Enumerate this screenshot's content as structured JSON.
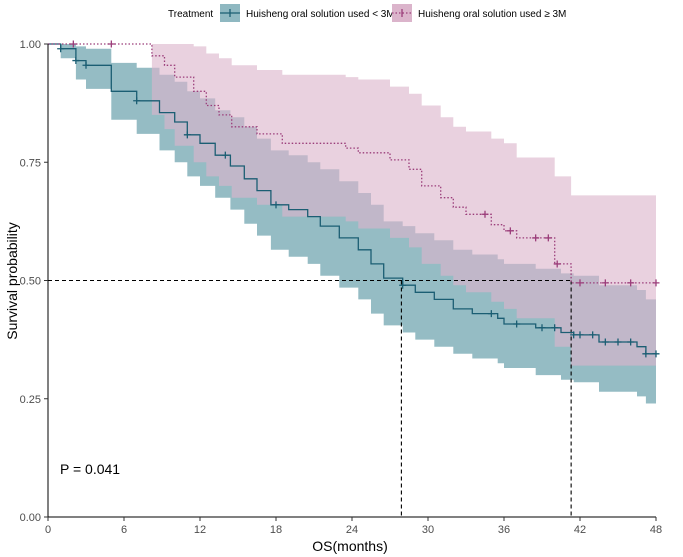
{
  "chart_data": {
    "type": "line",
    "subtype": "kaplan-meier survival curve",
    "title": "",
    "xlabel": "OS(months)",
    "ylabel": "Survival probability",
    "xlim": [
      0,
      48
    ],
    "ylim": [
      0,
      1
    ],
    "x_ticks": [
      0,
      6,
      12,
      18,
      24,
      30,
      36,
      42,
      48
    ],
    "y_ticks": [
      0,
      0.25,
      0.5,
      0.75,
      1
    ],
    "y_tick_labels": [
      "0.00",
      "0.25",
      "0.50",
      "0.75",
      "1.00"
    ],
    "legend": {
      "title": "Treatment",
      "position": "top",
      "entries": [
        "Huisheng oral solution used < 3M",
        "Huisheng oral solution used ≥ 3M"
      ]
    },
    "annotation": "P = 0.041",
    "reference_lines": {
      "horizontal_at": 0.5,
      "vertical_at": [
        27.9,
        41.3
      ]
    },
    "series": [
      {
        "name": "Huisheng oral solution used < 3M",
        "color": "#1b5e73",
        "ci_color": "#8fb8c1",
        "line_style": "solid",
        "steps": [
          [
            0,
            1.0
          ],
          [
            1.0,
            0.99
          ],
          [
            2.2,
            0.965
          ],
          [
            3.0,
            0.955
          ],
          [
            5.0,
            0.9
          ],
          [
            7.0,
            0.88
          ],
          [
            8.8,
            0.855
          ],
          [
            10.0,
            0.835
          ],
          [
            11.0,
            0.808
          ],
          [
            12.0,
            0.79
          ],
          [
            13.2,
            0.765
          ],
          [
            14.4,
            0.742
          ],
          [
            15.5,
            0.715
          ],
          [
            16.5,
            0.69
          ],
          [
            17.6,
            0.66
          ],
          [
            19.0,
            0.65
          ],
          [
            20.5,
            0.635
          ],
          [
            21.5,
            0.615
          ],
          [
            23.0,
            0.59
          ],
          [
            24.5,
            0.565
          ],
          [
            25.5,
            0.535
          ],
          [
            26.5,
            0.505
          ],
          [
            28.0,
            0.49
          ],
          [
            29.0,
            0.475
          ],
          [
            30.5,
            0.46
          ],
          [
            32.0,
            0.44
          ],
          [
            33.5,
            0.43
          ],
          [
            35.5,
            0.42
          ],
          [
            36.0,
            0.408
          ],
          [
            38.5,
            0.4
          ],
          [
            40.5,
            0.39
          ],
          [
            41.5,
            0.385
          ],
          [
            43.5,
            0.37
          ],
          [
            46.5,
            0.36
          ],
          [
            47.2,
            0.345
          ],
          [
            48.0,
            0.345
          ]
        ],
        "ci_upper": [
          [
            0,
            1.0
          ],
          [
            1.0,
            1.0
          ],
          [
            2.2,
            0.995
          ],
          [
            3.0,
            0.99
          ],
          [
            5.0,
            0.96
          ],
          [
            7.0,
            0.95
          ],
          [
            8.8,
            0.935
          ],
          [
            10.0,
            0.92
          ],
          [
            11.0,
            0.9
          ],
          [
            12.0,
            0.885
          ],
          [
            13.2,
            0.86
          ],
          [
            14.4,
            0.845
          ],
          [
            15.5,
            0.825
          ],
          [
            16.5,
            0.8
          ],
          [
            17.6,
            0.775
          ],
          [
            19.0,
            0.765
          ],
          [
            20.5,
            0.75
          ],
          [
            21.5,
            0.735
          ],
          [
            23.0,
            0.71
          ],
          [
            24.5,
            0.685
          ],
          [
            25.5,
            0.66
          ],
          [
            26.5,
            0.625
          ],
          [
            28.0,
            0.615
          ],
          [
            29.0,
            0.6
          ],
          [
            30.5,
            0.585
          ],
          [
            32.0,
            0.565
          ],
          [
            33.5,
            0.555
          ],
          [
            35.5,
            0.545
          ],
          [
            36.0,
            0.535
          ],
          [
            38.5,
            0.525
          ],
          [
            40.5,
            0.515
          ],
          [
            41.5,
            0.51
          ],
          [
            43.5,
            0.49
          ],
          [
            46.5,
            0.48
          ],
          [
            47.2,
            0.46
          ],
          [
            48.0,
            0.46
          ]
        ],
        "ci_lower": [
          [
            0,
            1.0
          ],
          [
            1.0,
            0.97
          ],
          [
            2.2,
            0.925
          ],
          [
            3.0,
            0.905
          ],
          [
            5.0,
            0.84
          ],
          [
            7.0,
            0.81
          ],
          [
            8.8,
            0.775
          ],
          [
            10.0,
            0.75
          ],
          [
            11.0,
            0.72
          ],
          [
            12.0,
            0.7
          ],
          [
            13.2,
            0.675
          ],
          [
            14.4,
            0.65
          ],
          [
            15.5,
            0.62
          ],
          [
            16.5,
            0.595
          ],
          [
            17.6,
            0.565
          ],
          [
            19.0,
            0.55
          ],
          [
            20.5,
            0.535
          ],
          [
            21.5,
            0.51
          ],
          [
            23.0,
            0.485
          ],
          [
            24.5,
            0.46
          ],
          [
            25.5,
            0.43
          ],
          [
            26.5,
            0.405
          ],
          [
            28.0,
            0.39
          ],
          [
            29.0,
            0.375
          ],
          [
            30.5,
            0.36
          ],
          [
            32.0,
            0.345
          ],
          [
            33.5,
            0.335
          ],
          [
            35.5,
            0.325
          ],
          [
            36.0,
            0.315
          ],
          [
            38.5,
            0.3
          ],
          [
            40.5,
            0.29
          ],
          [
            41.5,
            0.285
          ],
          [
            43.5,
            0.265
          ],
          [
            46.5,
            0.255
          ],
          [
            47.2,
            0.24
          ],
          [
            48.0,
            0.24
          ]
        ],
        "censor_times": [
          1.0,
          2.2,
          3.0,
          7.0,
          11.0,
          14.0,
          18.0,
          28.0,
          35.0,
          37.0,
          39.0,
          40.0,
          41.5,
          42.0,
          43.0,
          44.0,
          45.0,
          46.0,
          47.2,
          48.0
        ]
      },
      {
        "name": "Huisheng oral solution used ≥ 3M",
        "color": "#9b3d7a",
        "ci_color": "#dbb4cb",
        "line_style": "dotted",
        "steps": [
          [
            0,
            1.0
          ],
          [
            8.2,
            0.975
          ],
          [
            9.2,
            0.955
          ],
          [
            10.0,
            0.93
          ],
          [
            11.5,
            0.9
          ],
          [
            12.5,
            0.87
          ],
          [
            13.5,
            0.85
          ],
          [
            14.5,
            0.825
          ],
          [
            16.5,
            0.81
          ],
          [
            18.5,
            0.79
          ],
          [
            23.5,
            0.78
          ],
          [
            24.5,
            0.77
          ],
          [
            27.0,
            0.755
          ],
          [
            28.5,
            0.735
          ],
          [
            29.5,
            0.7
          ],
          [
            31.0,
            0.675
          ],
          [
            32.0,
            0.655
          ],
          [
            33.0,
            0.64
          ],
          [
            35.0,
            0.618
          ],
          [
            36.0,
            0.605
          ],
          [
            37.0,
            0.59
          ],
          [
            40.0,
            0.535
          ],
          [
            41.3,
            0.495
          ],
          [
            48.0,
            0.495
          ]
        ],
        "ci_upper": [
          [
            0,
            1.0
          ],
          [
            8.2,
            1.0
          ],
          [
            9.2,
            1.0
          ],
          [
            10.0,
            1.0
          ],
          [
            11.5,
            0.995
          ],
          [
            12.5,
            0.98
          ],
          [
            13.5,
            0.97
          ],
          [
            14.5,
            0.955
          ],
          [
            16.5,
            0.945
          ],
          [
            18.5,
            0.935
          ],
          [
            23.5,
            0.93
          ],
          [
            24.5,
            0.925
          ],
          [
            27.0,
            0.91
          ],
          [
            28.5,
            0.895
          ],
          [
            29.5,
            0.87
          ],
          [
            31.0,
            0.845
          ],
          [
            32.0,
            0.825
          ],
          [
            33.0,
            0.815
          ],
          [
            35.0,
            0.8
          ],
          [
            36.0,
            0.79
          ],
          [
            37.0,
            0.76
          ],
          [
            40.0,
            0.72
          ],
          [
            41.3,
            0.68
          ],
          [
            48.0,
            0.68
          ]
        ],
        "ci_lower": [
          [
            0,
            1.0
          ],
          [
            8.2,
            0.85
          ],
          [
            9.2,
            0.82
          ],
          [
            10.0,
            0.785
          ],
          [
            11.5,
            0.75
          ],
          [
            12.5,
            0.72
          ],
          [
            13.5,
            0.7
          ],
          [
            14.5,
            0.675
          ],
          [
            16.5,
            0.66
          ],
          [
            18.5,
            0.635
          ],
          [
            23.5,
            0.625
          ],
          [
            24.5,
            0.61
          ],
          [
            27.0,
            0.59
          ],
          [
            28.5,
            0.57
          ],
          [
            29.5,
            0.535
          ],
          [
            31.0,
            0.51
          ],
          [
            32.0,
            0.49
          ],
          [
            33.0,
            0.475
          ],
          [
            35.0,
            0.455
          ],
          [
            36.0,
            0.44
          ],
          [
            37.0,
            0.42
          ],
          [
            40.0,
            0.36
          ],
          [
            41.3,
            0.32
          ],
          [
            48.0,
            0.32
          ]
        ],
        "censor_times": [
          2.0,
          5.0,
          34.5,
          36.5,
          38.5,
          39.5,
          40.2,
          42.0,
          44.0,
          46.0,
          48.0
        ]
      }
    ]
  }
}
